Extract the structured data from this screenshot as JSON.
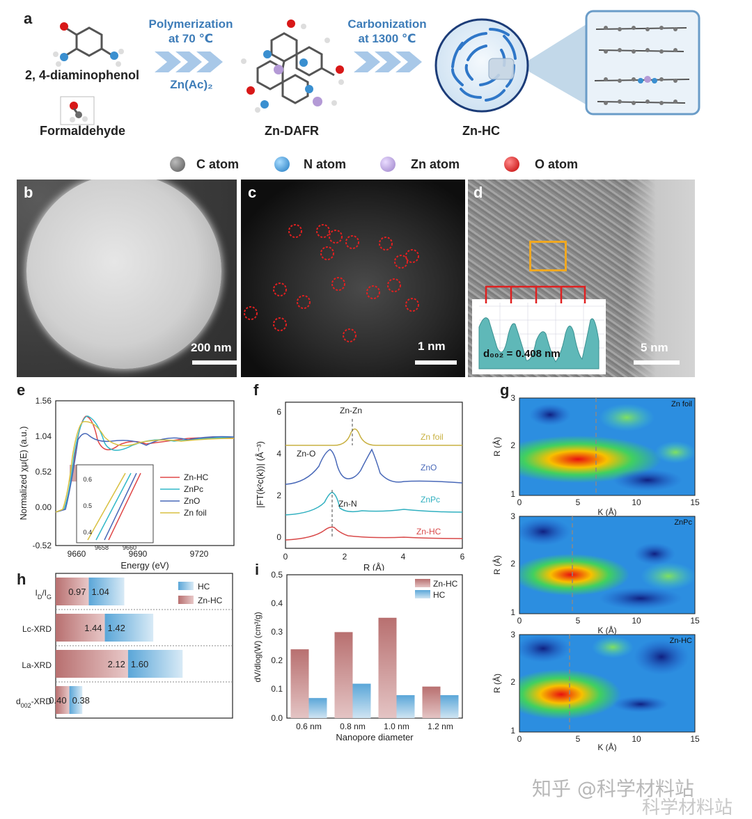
{
  "panel_a": {
    "label": "a",
    "reagent1": "2, 4-diaminophenol",
    "reagent2": "Formaldehyde",
    "step1_line1": "Polymerization",
    "step1_line2": "at 70 ℃",
    "step1_catalyst": "Zn(Ac)₂",
    "intermediate": "Zn-DAFR",
    "step2_line1": "Carbonization",
    "step2_line2": "at 1300 ℃",
    "product": "Zn-HC",
    "legend": [
      {
        "label": "C atom",
        "color": "#6b6b6b"
      },
      {
        "label": "N atom",
        "color": "#3a8fd0"
      },
      {
        "label": "Zn atom",
        "color": "#b49ad6"
      },
      {
        "label": "O atom",
        "color": "#d81818"
      }
    ]
  },
  "panel_b": {
    "label": "b",
    "scale": "200 nm"
  },
  "panel_c": {
    "label": "c",
    "scale": "1 nm"
  },
  "panel_d": {
    "label": "d",
    "scale": "5 nm",
    "inset_text": "d₀₀₂ = 0.408 nm"
  },
  "panel_e": {
    "label": "e",
    "xlabel": "Energy (eV)",
    "ylabel": "Normalized χμ(E) (a.u.)",
    "yticks": [
      "1.56",
      "1.04",
      "0.52",
      "0.00",
      "-0.52"
    ],
    "xticks": [
      "9660",
      "9690",
      "9720"
    ],
    "inset_yticks": [
      "0.6",
      "0.5",
      "0.4"
    ],
    "inset_xticks": [
      "9658",
      "9660"
    ],
    "legend": [
      {
        "label": "Zn-HC",
        "color": "#e04848"
      },
      {
        "label": "ZnPc",
        "color": "#30b8c8"
      },
      {
        "label": "ZnO",
        "color": "#4868b8"
      },
      {
        "label": "Zn foil",
        "color": "#d8c040"
      }
    ]
  },
  "panel_f": {
    "label": "f",
    "xlabel": "R (Å)",
    "ylabel": "|FT(k²c(k))| (Å⁻³)",
    "yticks": [
      "6",
      "4",
      "2",
      "0"
    ],
    "xticks": [
      "0",
      "2",
      "4",
      "6"
    ],
    "annotations": [
      "Zn-Zn",
      "Zn-O",
      "Zn-N"
    ],
    "series_labels": [
      {
        "label": "Zn foil",
        "color": "#c8b040"
      },
      {
        "label": "ZnO",
        "color": "#4868b8"
      },
      {
        "label": "ZnPc",
        "color": "#30b0c0"
      },
      {
        "label": "Zn-HC",
        "color": "#d84848"
      }
    ]
  },
  "panel_g": {
    "label": "g",
    "ylabel": "R (Å)",
    "xlabel": "K (Å)",
    "yticks": [
      "3",
      "2",
      "1"
    ],
    "xticks": [
      "0",
      "5",
      "10",
      "15"
    ],
    "maps": [
      {
        "title": "Zn foil"
      },
      {
        "title": "ZnPc"
      },
      {
        "title": "Zn-HC"
      }
    ]
  },
  "panel_h": {
    "label": "h",
    "legend": [
      {
        "label": "HC",
        "color": "#5aa6d8"
      },
      {
        "label": "Zn-HC",
        "color": "#b87070"
      }
    ]
  },
  "panel_i": {
    "label": "i",
    "xlabel": "Nanopore diameter",
    "ylabel": "dV/dlog(W) (cm³/g)",
    "yticks": [
      "0.5",
      "0.4",
      "0.3",
      "0.2",
      "0.1",
      "0.0"
    ]
  },
  "watermark": {
    "line1": "知乎 @科学材料站",
    "line2": "科学材料站"
  },
  "chart_data": [
    {
      "type": "bar",
      "id": "h",
      "orientation": "horizontal",
      "categories": [
        "ID/IG",
        "Lc-XRD",
        "La-XRD",
        "d002-XRD"
      ],
      "series": [
        {
          "name": "Zn-HC",
          "values": [
            0.97,
            1.44,
            2.12,
            0.4
          ]
        },
        {
          "name": "HC",
          "values": [
            1.04,
            1.42,
            1.6,
            0.38
          ]
        }
      ]
    },
    {
      "type": "bar",
      "id": "i",
      "categories": [
        "0.6 nm",
        "0.8 nm",
        "1.0 nm",
        "1.2 nm"
      ],
      "series": [
        {
          "name": "Zn-HC",
          "values": [
            0.24,
            0.3,
            0.35,
            0.11
          ]
        },
        {
          "name": "HC",
          "values": [
            0.07,
            0.12,
            0.08,
            0.08
          ]
        }
      ],
      "xlabel": "Nanopore diameter",
      "ylabel": "dV/dlog(W) (cm³/g)",
      "ylim": [
        0,
        0.5
      ]
    }
  ]
}
